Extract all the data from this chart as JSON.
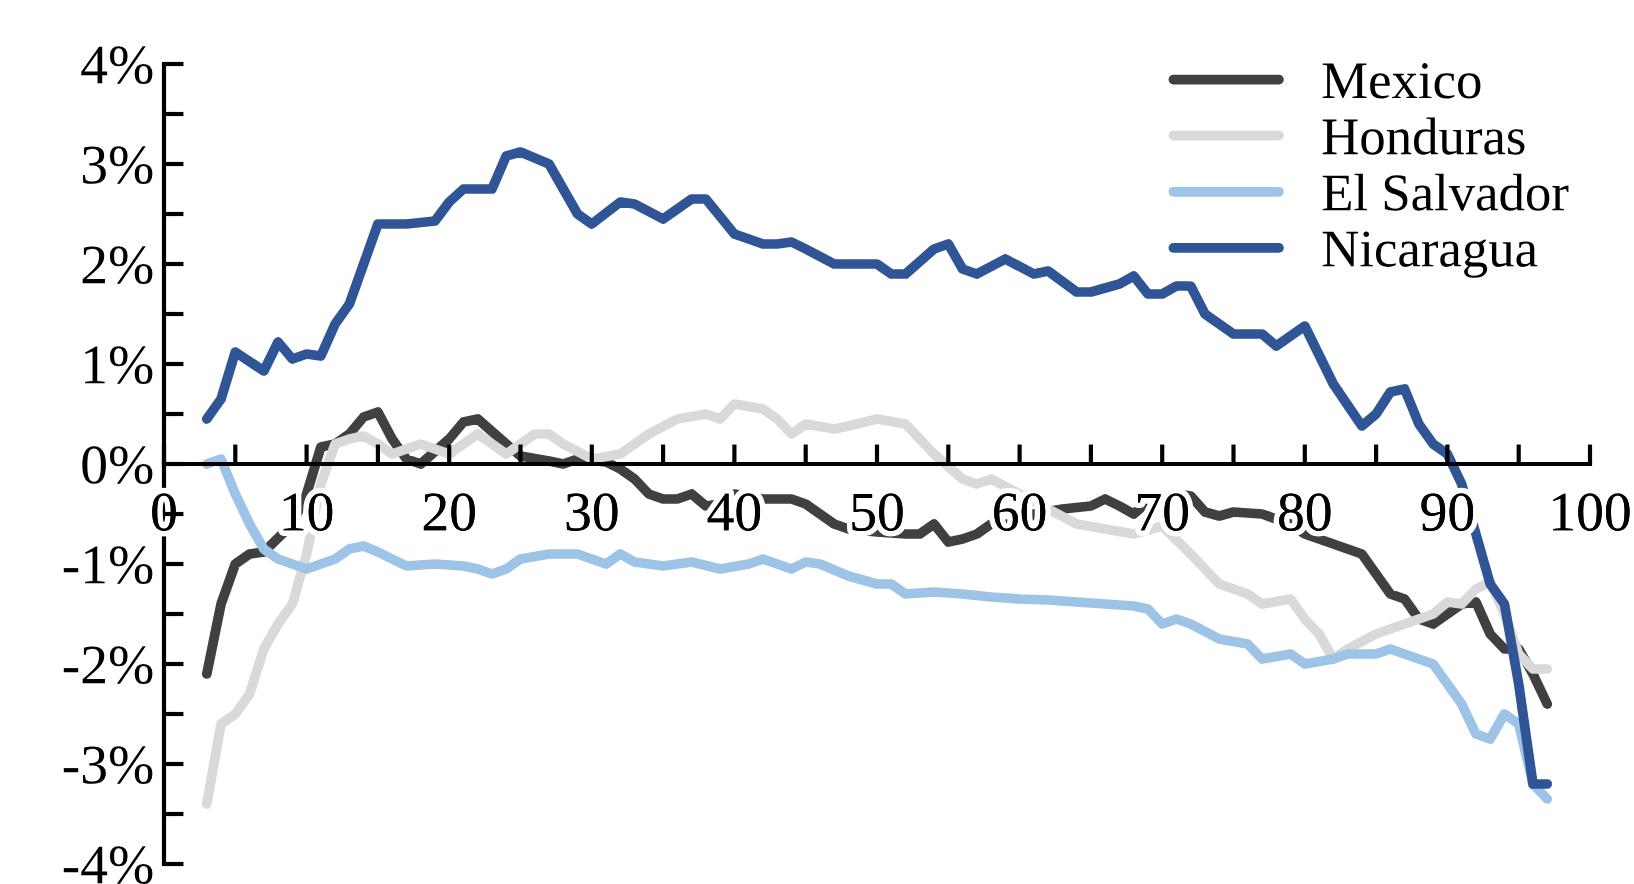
{
  "chart_data": {
    "type": "line",
    "xlim": [
      0,
      100
    ],
    "ylim": [
      -4,
      4
    ],
    "xticks": [
      0,
      {
        "value": 5,
        "label": null
      },
      10,
      {
        "value": 15,
        "label": null
      },
      20,
      {
        "value": 25,
        "label": null
      },
      30,
      {
        "value": 35,
        "label": null
      },
      40,
      {
        "value": 45,
        "label": null
      },
      50,
      {
        "value": 55,
        "label": null
      },
      60,
      {
        "value": 65,
        "label": null
      },
      70,
      {
        "value": 75,
        "label": null
      },
      80,
      {
        "value": 85,
        "label": null
      },
      90,
      {
        "value": 95,
        "label": null
      },
      100
    ],
    "yticks": [
      {
        "value": -4,
        "label": "-4%"
      },
      {
        "value": -3.5,
        "label": null
      },
      {
        "value": -3,
        "label": "-3%"
      },
      {
        "value": -2.5,
        "label": null
      },
      {
        "value": -2,
        "label": "-2%"
      },
      {
        "value": -1.5,
        "label": null
      },
      {
        "value": -1,
        "label": "-1%"
      },
      {
        "value": -0.5,
        "label": null
      },
      {
        "value": 0,
        "label": "0%"
      },
      {
        "value": 0.5,
        "label": null
      },
      {
        "value": 1,
        "label": "1%"
      },
      {
        "value": 1.5,
        "label": null
      },
      {
        "value": 2,
        "label": "2%"
      },
      {
        "value": 2.5,
        "label": null
      },
      {
        "value": 3,
        "label": "3%"
      },
      {
        "value": 3.5,
        "label": null
      },
      {
        "value": 4,
        "label": "4%"
      }
    ],
    "grid": false,
    "legend": "top right",
    "marker": "none",
    "line_style": "solid",
    "series": [
      {
        "name": "Mexico",
        "color": "#404040",
        "x": [
          3,
          4,
          5,
          6,
          7,
          9,
          10,
          11,
          12,
          13,
          14,
          15,
          16,
          17,
          18,
          20,
          21,
          22,
          24,
          25,
          27,
          28,
          29,
          31,
          32,
          33,
          34,
          35,
          36,
          37,
          38,
          39,
          40,
          42,
          44,
          45,
          46,
          47,
          48,
          50,
          52,
          53,
          54,
          55,
          56,
          57,
          58,
          60,
          61,
          63,
          65,
          66,
          67,
          68,
          69,
          70,
          71,
          72,
          73,
          74,
          75,
          77,
          79,
          80,
          82,
          84,
          85,
          86,
          87,
          88,
          89,
          90,
          91,
          92,
          93,
          94,
          95,
          96,
          97
        ],
        "values": [
          -2.1,
          -1.4,
          -1.0,
          -0.9,
          -0.88,
          -0.6,
          -0.3,
          0.17,
          0.2,
          0.3,
          0.47,
          0.52,
          0.25,
          0.05,
          0.0,
          0.25,
          0.42,
          0.45,
          0.2,
          0.08,
          0.03,
          0.0,
          0.05,
          0.02,
          -0.05,
          -0.15,
          -0.3,
          -0.35,
          -0.35,
          -0.3,
          -0.42,
          -0.4,
          -0.3,
          -0.35,
          -0.35,
          -0.4,
          -0.5,
          -0.6,
          -0.65,
          -0.68,
          -0.7,
          -0.7,
          -0.6,
          -0.78,
          -0.75,
          -0.7,
          -0.6,
          -0.6,
          -0.5,
          -0.45,
          -0.42,
          -0.35,
          -0.42,
          -0.5,
          -0.38,
          -0.35,
          -0.3,
          -0.32,
          -0.48,
          -0.52,
          -0.48,
          -0.5,
          -0.6,
          -0.7,
          -0.8,
          -0.9,
          -1.1,
          -1.3,
          -1.35,
          -1.55,
          -1.6,
          -1.5,
          -1.4,
          -1.38,
          -1.7,
          -1.85,
          -1.85,
          -2.1,
          -2.4
        ]
      },
      {
        "name": "Honduras",
        "color": "#d9d9d9",
        "x": [
          3,
          4,
          5,
          6,
          7,
          8,
          9,
          10,
          11,
          12,
          13,
          14,
          15,
          16,
          18,
          20,
          22,
          24,
          26,
          27,
          28,
          30,
          32,
          34,
          36,
          38,
          39,
          40,
          42,
          43,
          44,
          45,
          47,
          48,
          50,
          52,
          54,
          56,
          57,
          58,
          60,
          62,
          64,
          66,
          68,
          70,
          72,
          74,
          76,
          77,
          79,
          80,
          81,
          82,
          83,
          85,
          87,
          89,
          90,
          91,
          92,
          93,
          94,
          95,
          96,
          97
        ],
        "values": [
          -3.4,
          -2.6,
          -2.5,
          -2.3,
          -1.85,
          -1.6,
          -1.4,
          -0.9,
          -0.2,
          0.2,
          0.25,
          0.28,
          0.2,
          0.1,
          0.2,
          0.1,
          0.3,
          0.1,
          0.3,
          0.3,
          0.2,
          0.05,
          0.1,
          0.3,
          0.45,
          0.5,
          0.45,
          0.6,
          0.55,
          0.45,
          0.3,
          0.4,
          0.35,
          0.38,
          0.45,
          0.4,
          0.1,
          -0.15,
          -0.2,
          -0.15,
          -0.3,
          -0.45,
          -0.6,
          -0.65,
          -0.7,
          -0.62,
          -0.9,
          -1.2,
          -1.3,
          -1.4,
          -1.35,
          -1.55,
          -1.7,
          -1.95,
          -1.85,
          -1.7,
          -1.6,
          -1.5,
          -1.38,
          -1.4,
          -1.25,
          -1.18,
          -1.5,
          -1.9,
          -2.05,
          -2.05
        ]
      },
      {
        "name": "El Salvador",
        "color": "#9dc3e6",
        "x": [
          3,
          4,
          5,
          6,
          7,
          8,
          9,
          10,
          11,
          12,
          13,
          14,
          15,
          16,
          17,
          19,
          21,
          22,
          23,
          24,
          25,
          27,
          29,
          31,
          32,
          33,
          35,
          37,
          39,
          41,
          42,
          44,
          45,
          46,
          48,
          50,
          51,
          52,
          54,
          56,
          58,
          60,
          62,
          64,
          66,
          68,
          69,
          70,
          71,
          72,
          74,
          76,
          77,
          79,
          80,
          82,
          83,
          85,
          86,
          87,
          89,
          90,
          91,
          92,
          93,
          94,
          95,
          96,
          97
        ],
        "values": [
          0.0,
          0.05,
          -0.3,
          -0.6,
          -0.85,
          -0.95,
          -1.0,
          -1.05,
          -1.0,
          -0.95,
          -0.85,
          -0.82,
          -0.88,
          -0.95,
          -1.02,
          -1.0,
          -1.02,
          -1.05,
          -1.1,
          -1.05,
          -0.95,
          -0.9,
          -0.9,
          -1.0,
          -0.9,
          -0.98,
          -1.02,
          -0.98,
          -1.05,
          -1.0,
          -0.95,
          -1.05,
          -0.98,
          -1.0,
          -1.12,
          -1.2,
          -1.2,
          -1.3,
          -1.28,
          -1.3,
          -1.33,
          -1.35,
          -1.36,
          -1.38,
          -1.4,
          -1.42,
          -1.45,
          -1.6,
          -1.55,
          -1.6,
          -1.75,
          -1.8,
          -1.95,
          -1.9,
          -2.0,
          -1.95,
          -1.9,
          -1.9,
          -1.85,
          -1.9,
          -2.0,
          -2.2,
          -2.4,
          -2.7,
          -2.75,
          -2.5,
          -2.6,
          -3.2,
          -3.35
        ]
      },
      {
        "name": "Nicaragua",
        "color": "#2f5597",
        "x": [
          3,
          4,
          5,
          7,
          8,
          9,
          10,
          11,
          12,
          13,
          14,
          15,
          17,
          19,
          20,
          21,
          23,
          24,
          25,
          27,
          29,
          30,
          32,
          33,
          35,
          37,
          38,
          40,
          42,
          43,
          44,
          45,
          47,
          48,
          50,
          51,
          52,
          54,
          55,
          56,
          57,
          59,
          61,
          62,
          64,
          65,
          67,
          68,
          69,
          70,
          71,
          72,
          73,
          75,
          77,
          78,
          80,
          82,
          84,
          85,
          86,
          87,
          88,
          89,
          90,
          91,
          92,
          93,
          94,
          95,
          96,
          97
        ],
        "values": [
          0.45,
          0.65,
          1.12,
          0.93,
          1.22,
          1.05,
          1.1,
          1.08,
          1.4,
          1.6,
          2.0,
          2.4,
          2.4,
          2.43,
          2.62,
          2.75,
          2.75,
          3.08,
          3.12,
          3.0,
          2.5,
          2.4,
          2.62,
          2.6,
          2.45,
          2.65,
          2.65,
          2.3,
          2.2,
          2.2,
          2.22,
          2.15,
          2.0,
          2.0,
          2.0,
          1.9,
          1.9,
          2.15,
          2.2,
          1.95,
          1.9,
          2.05,
          1.9,
          1.93,
          1.72,
          1.72,
          1.8,
          1.88,
          1.7,
          1.7,
          1.78,
          1.78,
          1.5,
          1.3,
          1.3,
          1.18,
          1.38,
          0.8,
          0.38,
          0.5,
          0.72,
          0.75,
          0.4,
          0.2,
          0.1,
          -0.2,
          -0.7,
          -1.2,
          -1.4,
          -2.2,
          -3.2,
          -3.2
        ]
      }
    ]
  }
}
